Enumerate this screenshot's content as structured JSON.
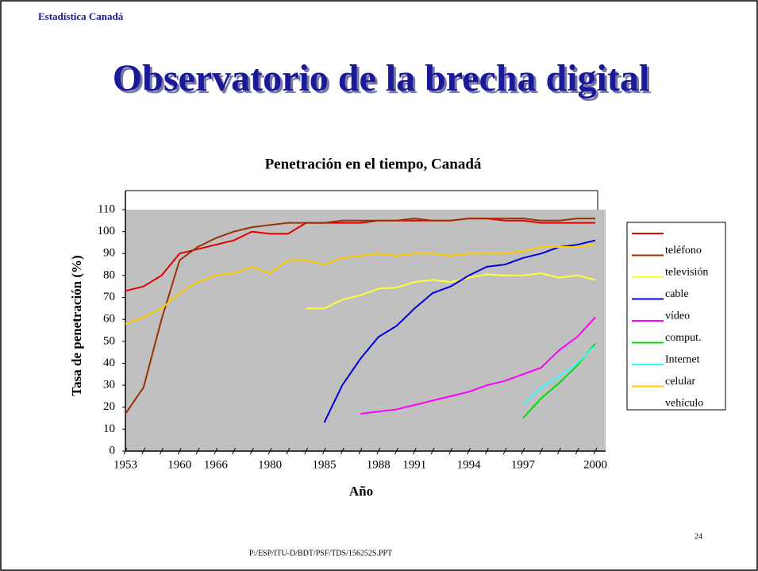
{
  "header": "Estadística Canadá",
  "title": "Observatorio de la brecha digital",
  "footer": "P:/ESP/ITU-D/BDT/PSF/TDS/156252S.PPT",
  "page_number": "24",
  "chart_data": {
    "type": "line",
    "title": "Penetración en el tiempo, Canadá",
    "x_label": "Año",
    "y_label": "Tasa de penetración (%)",
    "categories": [
      "1953",
      null,
      null,
      "1960",
      null,
      "1966",
      null,
      null,
      "1980",
      null,
      null,
      "1985",
      null,
      null,
      "1988",
      null,
      "1991",
      null,
      null,
      "1994",
      null,
      null,
      "1997",
      null,
      null,
      null,
      "2000"
    ],
    "ylim": [
      0,
      110
    ],
    "yticks": [
      0,
      10,
      20,
      30,
      40,
      50,
      60,
      70,
      80,
      90,
      100,
      110
    ],
    "background": "#c0c0c0",
    "series": [
      {
        "name": "teléfono",
        "color": "#e00000",
        "values": [
          73,
          75,
          80,
          90,
          92,
          94,
          96,
          100,
          99,
          99,
          104,
          104,
          104,
          104,
          105,
          105,
          105,
          105,
          105,
          106,
          106,
          105,
          105,
          104,
          104,
          104,
          104
        ]
      },
      {
        "name": "televisión",
        "color": "#993300",
        "values": [
          17,
          29,
          60,
          87,
          93,
          97,
          100,
          102,
          103,
          104,
          104,
          104,
          105,
          105,
          105,
          105,
          106,
          105,
          105,
          106,
          106,
          106,
          106,
          105,
          105,
          106,
          106
        ]
      },
      {
        "name": "cable",
        "color": "#ffff33",
        "values": [
          null,
          null,
          null,
          null,
          null,
          null,
          null,
          null,
          null,
          null,
          65,
          65,
          69,
          71,
          74,
          74.5,
          77,
          78,
          77,
          79,
          80.5,
          80,
          80,
          81,
          79,
          80,
          78
        ]
      },
      {
        "name": "vídeo",
        "color": "#0000dd",
        "values": [
          null,
          null,
          null,
          null,
          null,
          null,
          null,
          null,
          null,
          null,
          null,
          13,
          30,
          42,
          52,
          57,
          65,
          72,
          75,
          80,
          84,
          85,
          88,
          90,
          93,
          94,
          96
        ]
      },
      {
        "name": "comput.",
        "color": "#ff00ff",
        "values": [
          null,
          null,
          null,
          null,
          null,
          null,
          null,
          null,
          null,
          null,
          null,
          null,
          null,
          17,
          18,
          19,
          21,
          23,
          25,
          27,
          30,
          32,
          35,
          38,
          46,
          52,
          61
        ]
      },
      {
        "name": "Internet",
        "color": "#00dd00",
        "values": [
          null,
          null,
          null,
          null,
          null,
          null,
          null,
          null,
          null,
          null,
          null,
          null,
          null,
          null,
          null,
          null,
          null,
          null,
          null,
          null,
          null,
          null,
          15,
          24,
          31,
          39,
          49
        ]
      },
      {
        "name": "celular",
        "color": "#33ffff",
        "values": [
          null,
          null,
          null,
          null,
          null,
          null,
          null,
          null,
          null,
          null,
          null,
          null,
          null,
          null,
          null,
          null,
          null,
          null,
          null,
          null,
          null,
          null,
          21,
          29,
          34,
          40,
          48
        ]
      },
      {
        "name": "vehículo",
        "color": "#ffcc00",
        "values": [
          58,
          61,
          65,
          72,
          77,
          80,
          81,
          84,
          81,
          87,
          87,
          85,
          88,
          89,
          90,
          89,
          90,
          90,
          89,
          90,
          90,
          90,
          91,
          93,
          93,
          93,
          94
        ]
      }
    ]
  }
}
